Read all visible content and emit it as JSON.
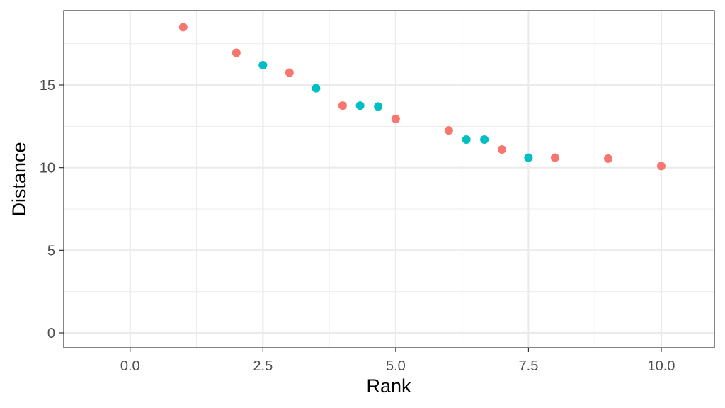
{
  "chart_data": {
    "type": "scatter",
    "title": "",
    "xlabel": "Rank",
    "ylabel": "Distance",
    "xlim": [
      -1.25,
      11.0
    ],
    "ylim": [
      -0.9,
      19.5
    ],
    "x_ticks": [
      0.0,
      2.5,
      5.0,
      7.5,
      10.0
    ],
    "x_tick_labels": [
      "0.0",
      "2.5",
      "5.0",
      "7.5",
      "10.0"
    ],
    "y_ticks": [
      0,
      5,
      10,
      15
    ],
    "y_tick_labels": [
      "0",
      "5",
      "10",
      "15"
    ],
    "x_minor_ticks": [
      1.25,
      3.75,
      6.25,
      8.75
    ],
    "y_minor_ticks": [
      2.5,
      7.5,
      12.5,
      17.5
    ],
    "grid": true,
    "legend": "none",
    "colors": {
      "series_a": "#f8766d",
      "series_b": "#00bfc4",
      "grid": "#ebebeb",
      "panel_border": "#333333",
      "tick": "#333333"
    },
    "series": [
      {
        "color": "#f8766d",
        "points": [
          {
            "x": 1,
            "y": 18.5
          },
          {
            "x": 2,
            "y": 16.95
          },
          {
            "x": 3,
            "y": 15.75
          },
          {
            "x": 4,
            "y": 13.75
          },
          {
            "x": 5,
            "y": 12.95
          },
          {
            "x": 6,
            "y": 12.25
          },
          {
            "x": 7,
            "y": 11.1
          },
          {
            "x": 8,
            "y": 10.6
          },
          {
            "x": 9,
            "y": 10.55
          },
          {
            "x": 10,
            "y": 10.1
          }
        ]
      },
      {
        "color": "#00bfc4",
        "points": [
          {
            "x": 2.5,
            "y": 16.2
          },
          {
            "x": 3.5,
            "y": 14.8
          },
          {
            "x": 4.33,
            "y": 13.75
          },
          {
            "x": 4.67,
            "y": 13.7
          },
          {
            "x": 6.33,
            "y": 11.7
          },
          {
            "x": 6.67,
            "y": 11.7
          },
          {
            "x": 7.5,
            "y": 10.6
          }
        ]
      }
    ]
  }
}
